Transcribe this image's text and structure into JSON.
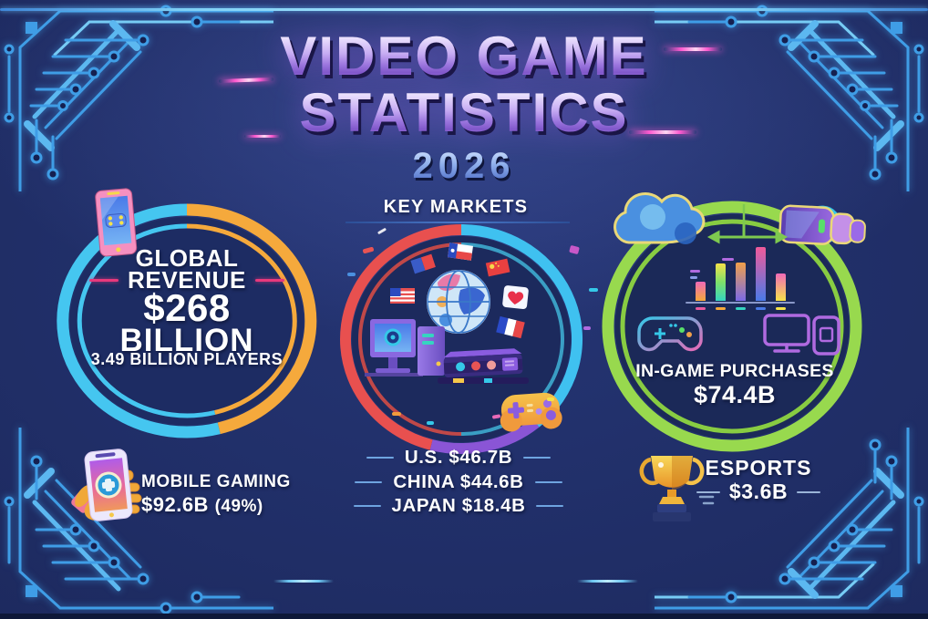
{
  "title": {
    "line1": "VIDEO GAME",
    "line2": "STATISTICS",
    "year": "2026"
  },
  "key_markets": {
    "heading": "KEY MARKETS",
    "items": [
      {
        "label": "U.S.",
        "value": "$46.7B"
      },
      {
        "label": "CHINA",
        "value": "$44.6B"
      },
      {
        "label": "JAPAN",
        "value": "$18.4B"
      }
    ]
  },
  "global_revenue": {
    "line1": "GLOBAL",
    "line2": "REVENUE",
    "amount": "$268",
    "unit": "BILLION",
    "players": "3.49 BILLION PLAYERS"
  },
  "in_game_purchases": {
    "label": "IN-GAME PURCHASES",
    "value": "$74.4B"
  },
  "mobile_gaming": {
    "label": "MOBILE GAMING",
    "value": "$92.6B",
    "share": "(49%)"
  },
  "esports": {
    "label": "ESPORTS",
    "value": "$3.6B"
  },
  "icons": {
    "phone-gamepad-icon": "smartphone with gamepad on screen",
    "globe-icon": "globe with country flags",
    "gamepad-icon": "orange game controller",
    "cloud-icon": "cloud",
    "vr-headset-icon": "VR headset",
    "monitor-icon": "desktop monitor",
    "console-icon": "game console",
    "trophy-icon": "gold esports trophy",
    "hand-phone-icon": "hand holding phone"
  },
  "colors": {
    "background": "#1d2a5e",
    "circuit_blue": "#3f9de6",
    "title_purple": "#b291ea",
    "accent_pink": "#e8397c",
    "ring_cyan": "#45c6f0",
    "ring_orange": "#f5a93c",
    "ring_red": "#e8504f",
    "ring_purple": "#8a55d6",
    "ring_green": "#98d94e",
    "year_blue": "#7ea6e8",
    "text_white": "#ffffff"
  },
  "chart_data": [
    {
      "type": "table",
      "title": "Video Game Statistics 2026",
      "rows": [
        [
          "Global Revenue",
          "$268 Billion"
        ],
        [
          "Players",
          "3.49 Billion"
        ],
        [
          "U.S. market",
          "$46.7B"
        ],
        [
          "China market",
          "$44.6B"
        ],
        [
          "Japan market",
          "$18.4B"
        ],
        [
          "In-Game Purchases",
          "$74.4B"
        ],
        [
          "Mobile Gaming",
          "$92.6B (49%)"
        ],
        [
          "Esports",
          "$3.6B"
        ]
      ]
    },
    {
      "type": "bar",
      "title": "decorative in-game purchases mini chart",
      "values": [
        21,
        41,
        42,
        59,
        30
      ],
      "colors": [
        [
          "#f06ab8",
          "#f5a93c"
        ],
        [
          "#f5e24a",
          "#7ee06a",
          "#35d4c0"
        ],
        [
          "#f0a04a",
          "#7a6ae8"
        ],
        [
          "#f05a9a",
          "#4a7ae8"
        ],
        [
          "#f06ab8",
          "#f5e24a"
        ]
      ],
      "tick_colors": [
        "#e85aa0",
        "#f5a93c",
        "#35d4c0",
        "#4a7ae8",
        "#f5e24a"
      ],
      "tick_labels_illegible": true
    }
  ]
}
